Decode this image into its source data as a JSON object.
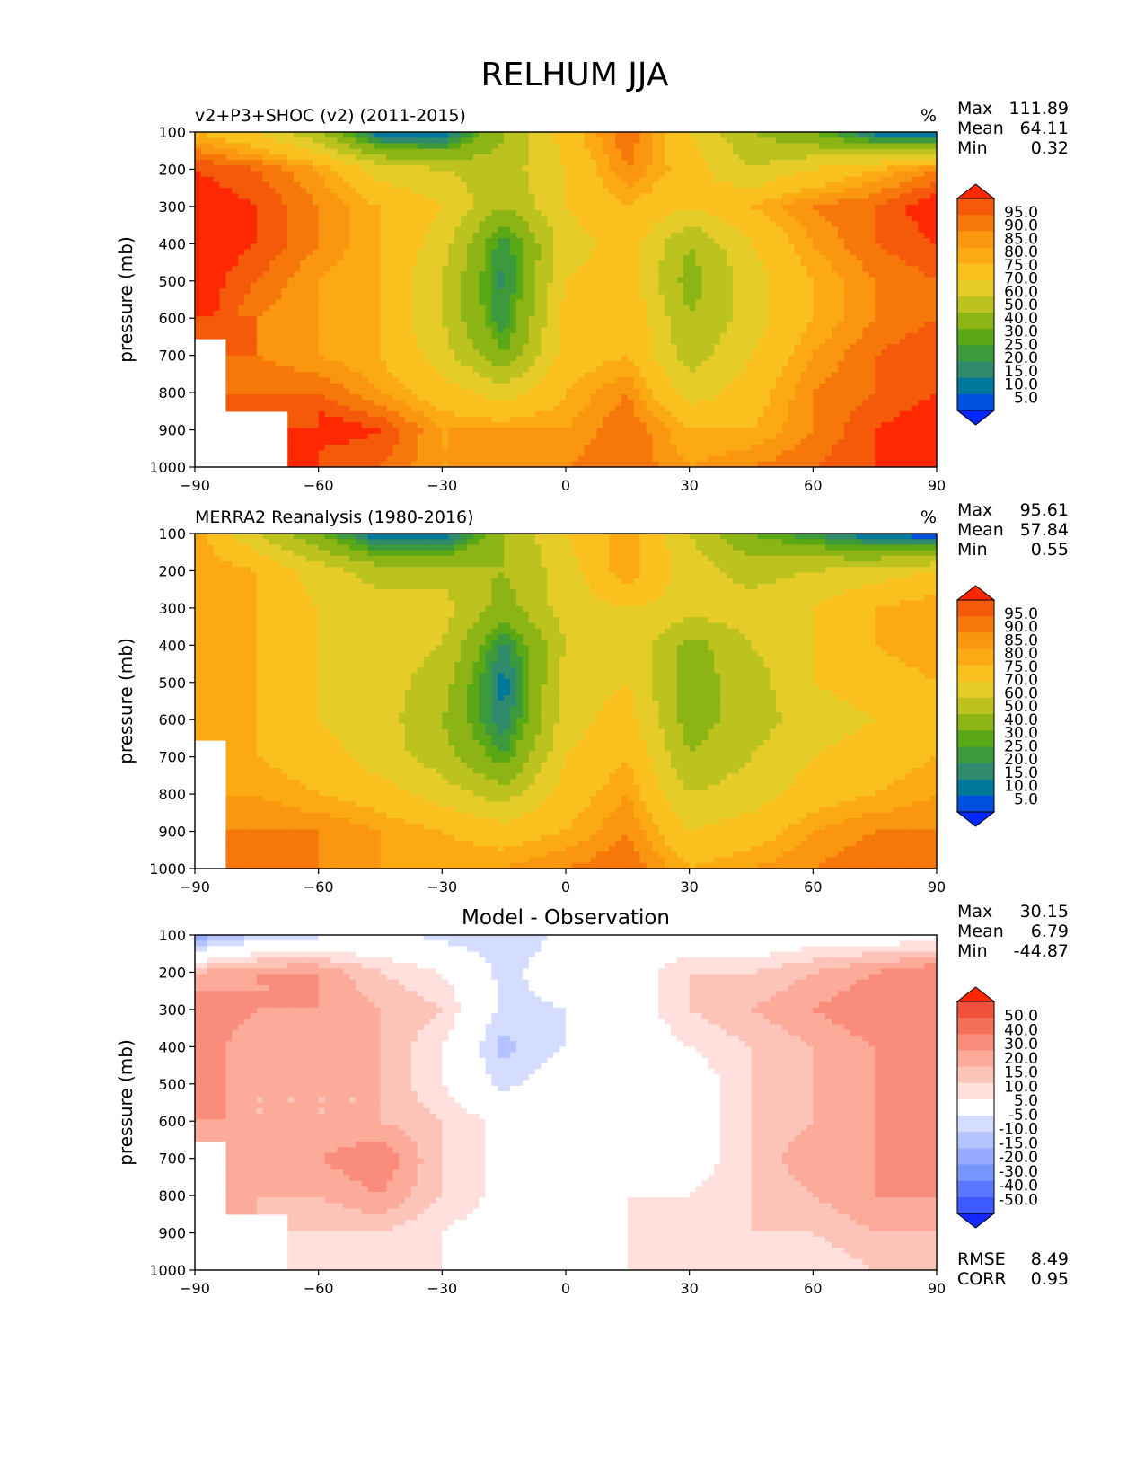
{
  "figure_title": "RELHUM JJA",
  "colors": {
    "abs_levels": [
      "#0028ff",
      "#0050e0",
      "#00789c",
      "#2f8b6c",
      "#3c9a3c",
      "#5aa815",
      "#8cb414",
      "#bcc21e",
      "#e6cc28",
      "#fac01e",
      "#fcaa14",
      "#fa960f",
      "#f7780a",
      "#f45a0a",
      "#ff2800"
    ],
    "diff_levels": [
      "#1428ff",
      "#3c5aff",
      "#5a78ff",
      "#7896ff",
      "#96aaff",
      "#b4c3ff",
      "#d4dcff",
      "#ffffff",
      "#ffe0dc",
      "#fcc4b8",
      "#fcaa9a",
      "#fa8c7c",
      "#f5705a",
      "#f0503c",
      "#ff2800"
    ]
  },
  "chart_data": [
    {
      "type": "heatmap",
      "title": "v2+P3+SHOC (v2) (2011-2015)",
      "units": "%",
      "ylabel": "pressure (mb)",
      "xlim": [
        -90,
        90
      ],
      "ylim": [
        1000,
        100
      ],
      "xticks": [
        "−90",
        "−60",
        "−30",
        "0",
        "30",
        "60",
        "90"
      ],
      "yticks": [
        "100",
        "200",
        "300",
        "400",
        "500",
        "600",
        "700",
        "800",
        "900",
        "1000"
      ],
      "stats": [
        {
          "label": "Max",
          "value": "111.89"
        },
        {
          "label": "Mean",
          "value": "64.11"
        },
        {
          "label": "Min",
          "value": "0.32"
        }
      ],
      "colorbar_labels": [
        "95.0",
        "90.0",
        "85.0",
        "80.0",
        "75.0",
        "70.0",
        "60.0",
        "50.0",
        "40.0",
        "30.0",
        "25.0",
        "20.0",
        "15.0",
        "10.0",
        "5.0"
      ],
      "field": {
        "x": [
          -90,
          -75,
          -60,
          -45,
          -30,
          -15,
          0,
          15,
          30,
          45,
          60,
          75,
          90
        ],
        "y": [
          100,
          200,
          300,
          400,
          500,
          600,
          700,
          800,
          900,
          1000
        ],
        "z": [
          [
            70,
            60,
            40,
            10,
            8,
            40,
            65,
            85,
            60,
            40,
            30,
            10,
            5
          ],
          [
            90,
            85,
            75,
            55,
            50,
            45,
            60,
            80,
            65,
            50,
            60,
            70,
            80
          ],
          [
            95,
            90,
            80,
            70,
            60,
            40,
            60,
            70,
            60,
            70,
            80,
            85,
            95
          ],
          [
            95,
            90,
            80,
            70,
            55,
            20,
            55,
            65,
            40,
            60,
            75,
            85,
            90
          ],
          [
            95,
            85,
            75,
            70,
            50,
            18,
            60,
            65,
            35,
            55,
            70,
            80,
            85
          ],
          [
            95,
            80,
            75,
            70,
            50,
            20,
            65,
            70,
            40,
            55,
            70,
            80,
            85
          ],
          [
            null,
            80,
            75,
            70,
            55,
            30,
            65,
            70,
            45,
            60,
            75,
            85,
            90
          ],
          [
            null,
            85,
            85,
            75,
            65,
            55,
            70,
            80,
            55,
            65,
            80,
            85,
            90
          ],
          [
            null,
            null,
            95,
            90,
            75,
            75,
            75,
            85,
            70,
            70,
            80,
            90,
            95
          ],
          [
            null,
            null,
            85,
            85,
            75,
            75,
            80,
            85,
            75,
            80,
            85,
            90,
            95
          ]
        ]
      }
    },
    {
      "type": "heatmap",
      "title": "MERRA2 Reanalysis (1980-2016)",
      "units": "%",
      "ylabel": "pressure (mb)",
      "xlim": [
        -90,
        90
      ],
      "ylim": [
        1000,
        100
      ],
      "xticks": [
        "−90",
        "−60",
        "−30",
        "0",
        "30",
        "60",
        "90"
      ],
      "yticks": [
        "100",
        "200",
        "300",
        "400",
        "500",
        "600",
        "700",
        "800",
        "900",
        "1000"
      ],
      "stats": [
        {
          "label": "Max",
          "value": "95.61"
        },
        {
          "label": "Mean",
          "value": "57.84"
        },
        {
          "label": "Min",
          "value": "0.55"
        }
      ],
      "colorbar_labels": [
        "95.0",
        "90.0",
        "85.0",
        "80.0",
        "75.0",
        "70.0",
        "60.0",
        "50.0",
        "40.0",
        "30.0",
        "25.0",
        "20.0",
        "15.0",
        "10.0",
        "5.0"
      ],
      "field": {
        "x": [
          -90,
          -75,
          -60,
          -45,
          -30,
          -15,
          0,
          15,
          30,
          45,
          60,
          75,
          90
        ],
        "y": [
          100,
          200,
          300,
          400,
          500,
          600,
          700,
          800,
          900,
          1000
        ],
        "z": [
          [
            75,
            50,
            30,
            8,
            8,
            40,
            60,
            75,
            50,
            30,
            20,
            8,
            5
          ],
          [
            75,
            70,
            55,
            45,
            45,
            40,
            55,
            75,
            55,
            45,
            50,
            55,
            60
          ],
          [
            75,
            70,
            60,
            55,
            55,
            35,
            55,
            60,
            55,
            55,
            60,
            70,
            75
          ],
          [
            75,
            70,
            60,
            55,
            50,
            18,
            50,
            60,
            35,
            50,
            60,
            70,
            75
          ],
          [
            75,
            70,
            60,
            55,
            45,
            12,
            55,
            60,
            35,
            45,
            60,
            65,
            70
          ],
          [
            75,
            70,
            60,
            55,
            40,
            15,
            55,
            65,
            35,
            45,
            55,
            60,
            65
          ],
          [
            null,
            70,
            65,
            55,
            45,
            25,
            60,
            70,
            40,
            50,
            60,
            65,
            70
          ],
          [
            null,
            75,
            70,
            65,
            55,
            45,
            65,
            75,
            50,
            55,
            65,
            70,
            75
          ],
          [
            null,
            80,
            80,
            75,
            70,
            65,
            70,
            80,
            60,
            65,
            75,
            80,
            80
          ],
          [
            null,
            85,
            80,
            75,
            75,
            75,
            80,
            85,
            70,
            75,
            80,
            85,
            85
          ]
        ]
      }
    },
    {
      "type": "heatmap",
      "title": "Model - Observation",
      "units": "",
      "ylabel": "pressure (mb)",
      "xlim": [
        -90,
        90
      ],
      "ylim": [
        1000,
        100
      ],
      "xticks": [
        "−90",
        "−60",
        "−30",
        "0",
        "30",
        "60",
        "90"
      ],
      "yticks": [
        "100",
        "200",
        "300",
        "400",
        "500",
        "600",
        "700",
        "800",
        "900",
        "1000"
      ],
      "stats": [
        {
          "label": "Max",
          "value": "30.15"
        },
        {
          "label": "Mean",
          "value": "6.79"
        },
        {
          "label": "Min",
          "value": "-44.87"
        }
      ],
      "footer_stats": [
        {
          "label": "RMSE",
          "value": "8.49"
        },
        {
          "label": "CORR",
          "value": "0.95"
        }
      ],
      "colorbar_labels": [
        "50.0",
        "40.0",
        "30.0",
        "20.0",
        "15.0",
        "10.0",
        "5.0",
        "-5.0",
        "-10.0",
        "-15.0",
        "-20.0",
        "-30.0",
        "-40.0",
        "-50.0"
      ],
      "field": {
        "x": [
          -90,
          -75,
          -60,
          -45,
          -30,
          -15,
          0,
          15,
          30,
          45,
          60,
          75,
          90
        ],
        "y": [
          100,
          200,
          300,
          400,
          500,
          600,
          700,
          800,
          900,
          1000
        ],
        "z": [
          [
            -20,
            -10,
            -7,
            -3,
            -7,
            -10,
            -3,
            4,
            -3,
            -3,
            0,
            0,
            0
          ],
          [
            15,
            20,
            20,
            10,
            5,
            -7,
            0,
            0,
            10,
            10,
            15,
            20,
            25
          ],
          [
            25,
            20,
            20,
            15,
            10,
            -7,
            -5,
            0,
            10,
            15,
            20,
            25,
            28
          ],
          [
            25,
            15,
            20,
            15,
            5,
            -12,
            -5,
            0,
            5,
            10,
            15,
            20,
            20
          ],
          [
            25,
            15,
            15,
            15,
            5,
            -7,
            0,
            0,
            0,
            10,
            15,
            20,
            20
          ],
          [
            25,
            15,
            15,
            15,
            10,
            3,
            0,
            0,
            0,
            10,
            15,
            20,
            22
          ],
          [
            null,
            15,
            20,
            25,
            10,
            3,
            0,
            0,
            0,
            10,
            20,
            20,
            25
          ],
          [
            null,
            15,
            15,
            20,
            10,
            3,
            0,
            5,
            5,
            10,
            15,
            20,
            20
          ],
          [
            null,
            null,
            10,
            10,
            5,
            0,
            3,
            5,
            10,
            10,
            10,
            15,
            15
          ],
          [
            null,
            null,
            5,
            5,
            5,
            0,
            5,
            5,
            5,
            5,
            5,
            10,
            10
          ]
        ]
      }
    }
  ]
}
